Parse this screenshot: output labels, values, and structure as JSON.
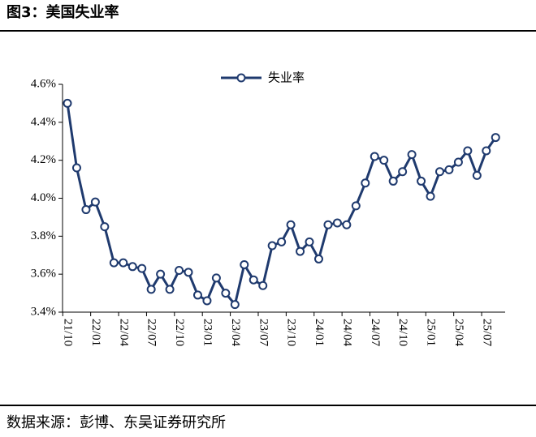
{
  "header": {
    "title": "图3：美国失业率"
  },
  "chart_data": {
    "type": "line",
    "categories": [
      "21/10",
      null,
      null,
      "22/01",
      null,
      null,
      "22/04",
      null,
      null,
      "22/07",
      null,
      null,
      "22/10",
      null,
      null,
      "23/01",
      null,
      null,
      "23/04",
      null,
      null,
      "23/07",
      null,
      null,
      "23/10",
      null,
      null,
      "24/01",
      null,
      null,
      "24/04",
      null,
      null,
      "24/07",
      null,
      null,
      "24/10",
      null,
      null,
      "25/01",
      null,
      null,
      "25/04",
      null,
      null,
      "25/07",
      null
    ],
    "series": [
      {
        "name": "失业率",
        "color": "#1f3a6e",
        "values": [
          4.5,
          4.16,
          3.94,
          3.98,
          3.85,
          3.66,
          3.66,
          3.64,
          3.63,
          3.52,
          3.6,
          3.52,
          3.62,
          3.61,
          3.49,
          3.46,
          3.58,
          3.5,
          3.44,
          3.65,
          3.57,
          3.54,
          3.75,
          3.77,
          3.86,
          3.72,
          3.77,
          3.68,
          3.86,
          3.87,
          3.86,
          3.96,
          4.08,
          4.22,
          4.2,
          4.09,
          4.14,
          4.23,
          4.09,
          4.01,
          4.14,
          4.15,
          4.19,
          4.25,
          4.12,
          4.25,
          4.32
        ]
      }
    ],
    "ylim": [
      3.4,
      4.6
    ],
    "yticks": [
      {
        "value": 3.4,
        "label": "3.4%"
      },
      {
        "value": 3.6,
        "label": "3.6%"
      },
      {
        "value": 3.8,
        "label": "3.8%"
      },
      {
        "value": 4.0,
        "label": "4.0%"
      },
      {
        "value": 4.2,
        "label": "4.2%"
      },
      {
        "value": 4.4,
        "label": "4.4%"
      },
      {
        "value": 4.6,
        "label": "4.6%"
      }
    ],
    "legend": "top"
  },
  "footer": {
    "source": "数据来源：彭博、东吴证券研究所"
  }
}
